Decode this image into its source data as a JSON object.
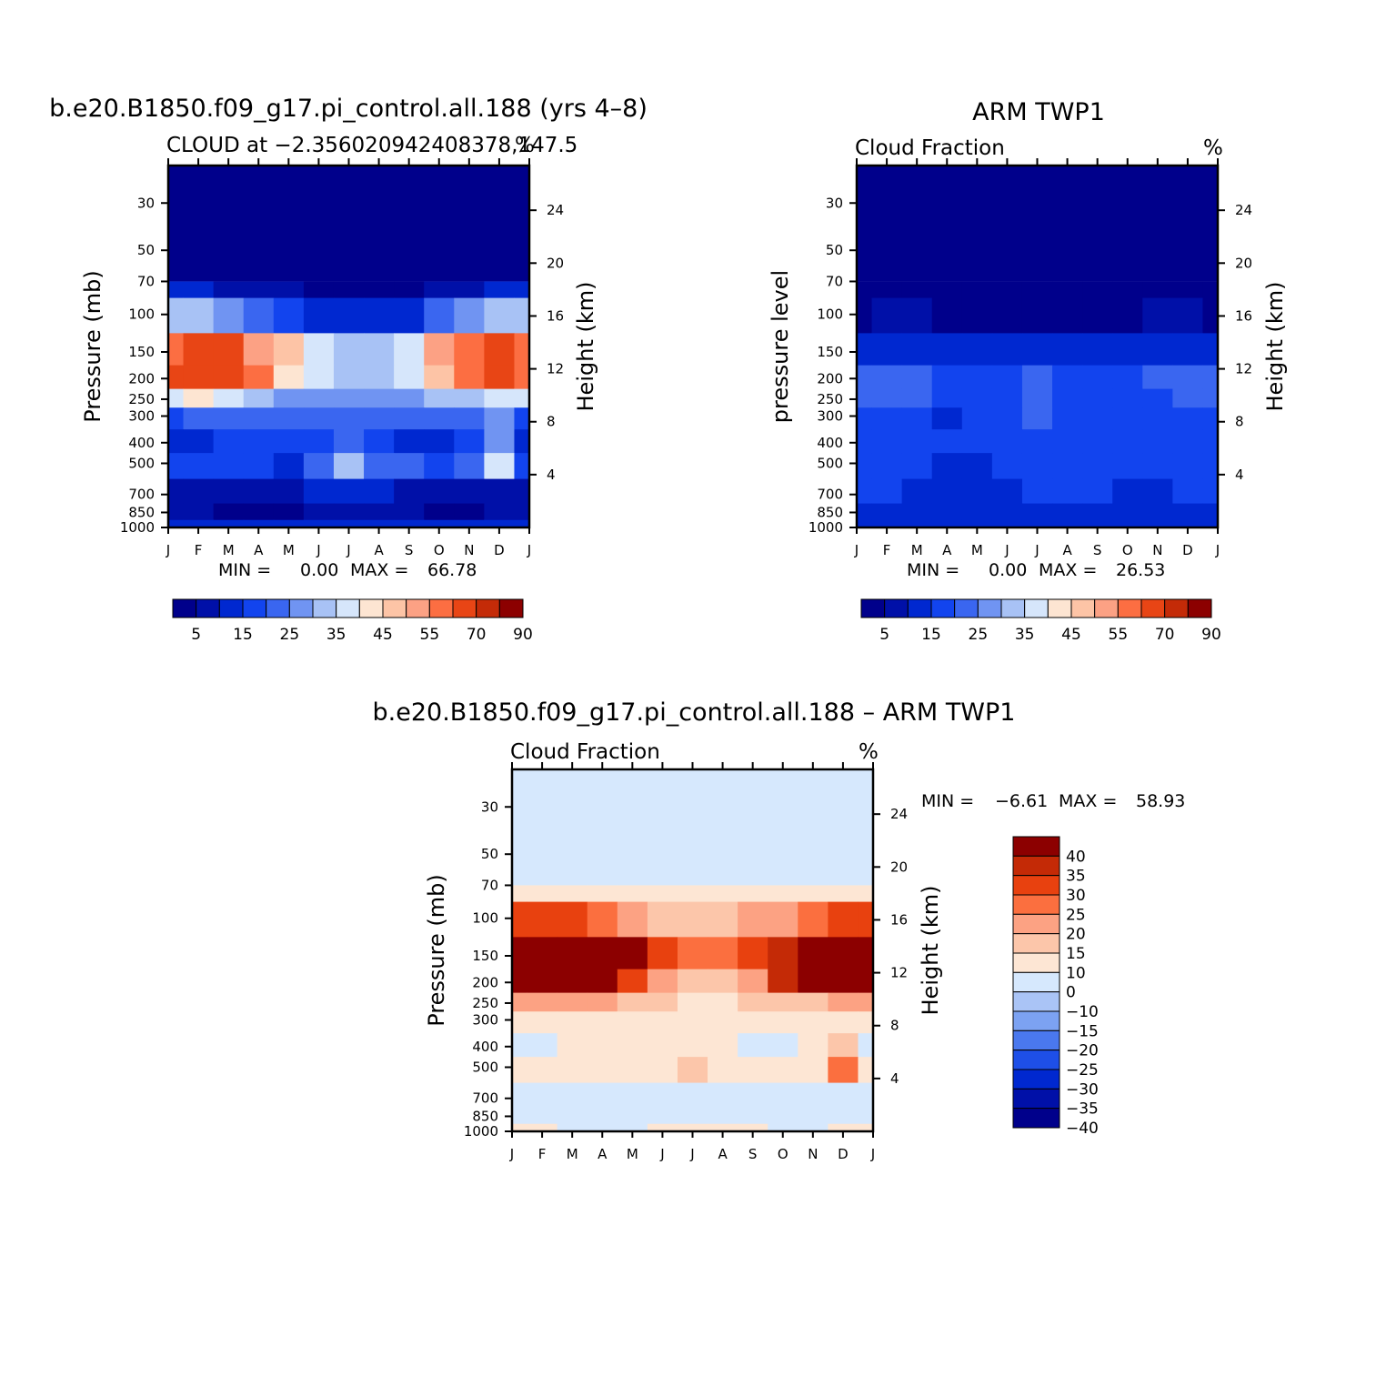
{
  "colors": {
    "scale15": [
      "#00008b",
      "#0010a8",
      "#0028d0",
      "#1244ee",
      "#3a66f0",
      "#7094f2",
      "#a8c2f5",
      "#d6e6fb",
      "#fde5d2",
      "#fdc4a6",
      "#fca184",
      "#fc6e42",
      "#e84515",
      "#c42b08",
      "#8c0000"
    ],
    "diffScale": [
      "#00008b",
      "#0010a8",
      "#0028d0",
      "#1e4fe8",
      "#4a78ee",
      "#7ca2f2",
      "#aac4f6",
      "#d6e8fd",
      "#fde6d4",
      "#fcc6aa",
      "#fca283",
      "#fb6f3f",
      "#e8410f",
      "#c42a06",
      "#8c0000"
    ]
  },
  "chart_data": [
    {
      "id": "model",
      "type": "heatmap",
      "title": "b.e20.B1850.f09_g17.pi_control.all.188 (yrs 4–8)",
      "subtitle": "CLOUD at −2.356020942408378,147.5",
      "units": "%",
      "xlabel": "",
      "ylabel": "Pressure (mb)",
      "ylabel_right": "Height (km)",
      "x_ticks": [
        "J",
        "F",
        "M",
        "A",
        "M",
        "J",
        "J",
        "A",
        "S",
        "O",
        "N",
        "D",
        "J"
      ],
      "y_ticks": [
        "30",
        "50",
        "70",
        "100",
        "150",
        "200",
        "250",
        "300",
        "400",
        "500",
        "700",
        "850",
        "1000"
      ],
      "y_ticks_right": [
        "24",
        "20",
        "16",
        "12",
        "8",
        "4"
      ],
      "ylim": [
        1000,
        20
      ],
      "stats": {
        "min_label": "MIN =",
        "min": "0.00",
        "max_label": "MAX =",
        "max": "66.78"
      },
      "colorbar_labels": [
        "5",
        "15",
        "25",
        "35",
        "45",
        "55",
        "70",
        "90"
      ],
      "levels": [
        "70",
        "100",
        "150",
        "200",
        "250",
        "300",
        "400",
        "500",
        "700",
        "850",
        "1000"
      ],
      "months": [
        "J",
        "F",
        "M",
        "A",
        "M",
        "J",
        "J",
        "A",
        "S",
        "O",
        "N",
        "D",
        "J"
      ],
      "values": [
        [
          12,
          10,
          8,
          7,
          5,
          4,
          3,
          3,
          4,
          5,
          7,
          10,
          12
        ],
        [
          30,
          30,
          28,
          24,
          18,
          14,
          12,
          12,
          14,
          20,
          26,
          30,
          30
        ],
        [
          58,
          62,
          60,
          54,
          46,
          38,
          34,
          34,
          38,
          50,
          58,
          62,
          58
        ],
        [
          60,
          64,
          63,
          56,
          44,
          36,
          33,
          33,
          36,
          48,
          58,
          62,
          58
        ],
        [
          36,
          40,
          38,
          32,
          28,
          26,
          26,
          26,
          28,
          30,
          32,
          36,
          36
        ],
        [
          18,
          20,
          22,
          20,
          22,
          24,
          22,
          22,
          24,
          22,
          22,
          26,
          18
        ],
        [
          14,
          14,
          16,
          18,
          16,
          18,
          20,
          18,
          12,
          14,
          16,
          28,
          14
        ],
        [
          16,
          16,
          18,
          16,
          14,
          22,
          30,
          22,
          20,
          18,
          20,
          36,
          16
        ],
        [
          8,
          8,
          6,
          6,
          6,
          10,
          10,
          10,
          8,
          6,
          6,
          8,
          8
        ],
        [
          6,
          6,
          4,
          4,
          4,
          6,
          6,
          6,
          6,
          4,
          4,
          6,
          6
        ],
        [
          12,
          12,
          10,
          10,
          10,
          12,
          12,
          12,
          12,
          10,
          10,
          12,
          12
        ]
      ]
    },
    {
      "id": "obs",
      "type": "heatmap",
      "title": "ARM TWP1",
      "subtitle": "Cloud Fraction",
      "units": "%",
      "xlabel": "",
      "ylabel": "pressure level",
      "ylabel_right": "Height (km)",
      "x_ticks": [
        "J",
        "F",
        "M",
        "A",
        "M",
        "J",
        "J",
        "A",
        "S",
        "O",
        "N",
        "D",
        "J"
      ],
      "y_ticks": [
        "30",
        "50",
        "70",
        "100",
        "150",
        "200",
        "250",
        "300",
        "400",
        "500",
        "700",
        "850",
        "1000"
      ],
      "y_ticks_right": [
        "24",
        "20",
        "16",
        "12",
        "8",
        "4"
      ],
      "ylim": [
        1000,
        20
      ],
      "stats": {
        "min_label": "MIN =",
        "min": "0.00",
        "max_label": "MAX =",
        "max": "26.53"
      },
      "colorbar_labels": [
        "5",
        "15",
        "25",
        "35",
        "45",
        "55",
        "70",
        "90"
      ],
      "levels": [
        "70",
        "100",
        "150",
        "200",
        "250",
        "300",
        "400",
        "500",
        "700",
        "850",
        "1000"
      ],
      "months": [
        "J",
        "F",
        "M",
        "A",
        "M",
        "J",
        "J",
        "A",
        "S",
        "O",
        "N",
        "D",
        "J"
      ],
      "values": [
        [
          1,
          1,
          1,
          1,
          1,
          1,
          1,
          1,
          1,
          1,
          1,
          1,
          1
        ],
        [
          4,
          6,
          5,
          4,
          3,
          3,
          3,
          3,
          3,
          4,
          5,
          6,
          4
        ],
        [
          11,
          12,
          12,
          11,
          10,
          10,
          10,
          10,
          10,
          10,
          11,
          12,
          11
        ],
        [
          21,
          22,
          21,
          17,
          16,
          17,
          22,
          19,
          17,
          16,
          20,
          23,
          21
        ],
        [
          21,
          22,
          21,
          17,
          16,
          16,
          24,
          19,
          17,
          16,
          19,
          21,
          21
        ],
        [
          17,
          17,
          16,
          14,
          16,
          16,
          20,
          18,
          17,
          16,
          17,
          17,
          17
        ],
        [
          16,
          16,
          16,
          15,
          16,
          16,
          18,
          17,
          17,
          16,
          16,
          16,
          16
        ],
        [
          16,
          16,
          15,
          12,
          14,
          16,
          17,
          16,
          16,
          15,
          15,
          16,
          16
        ],
        [
          15,
          15,
          12,
          11,
          12,
          14,
          15,
          15,
          15,
          12,
          12,
          15,
          15
        ],
        [
          14,
          14,
          12,
          11,
          12,
          14,
          14,
          14,
          14,
          12,
          12,
          14,
          14
        ],
        [
          12,
          12,
          12,
          11,
          12,
          12,
          12,
          12,
          12,
          12,
          12,
          12,
          12
        ]
      ]
    },
    {
      "id": "diff",
      "type": "heatmap",
      "title": "b.e20.B1850.f09_g17.pi_control.all.188 – ARM TWP1",
      "subtitle": "Cloud Fraction",
      "units": "%",
      "xlabel": "",
      "ylabel": "Pressure (mb)",
      "ylabel_right": "Height (km)",
      "x_ticks": [
        "J",
        "F",
        "M",
        "A",
        "M",
        "J",
        "J",
        "A",
        "S",
        "O",
        "N",
        "D",
        "J"
      ],
      "y_ticks": [
        "30",
        "50",
        "70",
        "100",
        "150",
        "200",
        "250",
        "300",
        "400",
        "500",
        "700",
        "850",
        "1000"
      ],
      "y_ticks_right": [
        "24",
        "20",
        "16",
        "12",
        "8",
        "4"
      ],
      "ylim": [
        1000,
        20
      ],
      "stats": {
        "min_label": "MIN =",
        "min": "−6.61",
        "max_label": "MAX =",
        "max": "58.93"
      },
      "colorbar_labels": [
        "40",
        "35",
        "30",
        "25",
        "20",
        "15",
        "10",
        "0",
        "−10",
        "−15",
        "−20",
        "−25",
        "−30",
        "−35",
        "−40"
      ],
      "levels": [
        "70",
        "100",
        "150",
        "200",
        "250",
        "300",
        "400",
        "500",
        "700",
        "850",
        "1000"
      ],
      "months": [
        "J",
        "F",
        "M",
        "A",
        "M",
        "J",
        "J",
        "A",
        "S",
        "O",
        "N",
        "D",
        "J"
      ],
      "values": [
        [
          6,
          6,
          6,
          5,
          4,
          3,
          3,
          3,
          3,
          4,
          5,
          6,
          6
        ],
        [
          26,
          28,
          26,
          20,
          16,
          14,
          14,
          14,
          16,
          18,
          22,
          26,
          26
        ],
        [
          47,
          50,
          48,
          43,
          36,
          28,
          24,
          24,
          28,
          34,
          39,
          50,
          47
        ],
        [
          39,
          42,
          42,
          39,
          28,
          19,
          11,
          14,
          19,
          32,
          39,
          41,
          37
        ],
        [
          15,
          18,
          17,
          15,
          12,
          10,
          2,
          7,
          11,
          14,
          13,
          15,
          15
        ],
        [
          1,
          3,
          6,
          5,
          6,
          8,
          2,
          4,
          7,
          6,
          5,
          9,
          1
        ],
        [
          -2,
          -2,
          1,
          3,
          0,
          2,
          2,
          1,
          -5,
          -2,
          0,
          12,
          -2
        ],
        [
          0,
          0,
          3,
          4,
          0,
          6,
          13,
          6,
          4,
          3,
          5,
          20,
          0
        ],
        [
          -7,
          -7,
          -6,
          -5,
          -6,
          -4,
          -5,
          -5,
          -7,
          -6,
          -6,
          -7,
          -7
        ],
        [
          -6,
          -6,
          -8,
          -7,
          -8,
          -8,
          -8,
          -8,
          -8,
          -8,
          -8,
          -8,
          -6
        ],
        [
          0,
          0,
          -2,
          -1,
          -2,
          0,
          0,
          0,
          0,
          -2,
          -2,
          0,
          0
        ]
      ]
    }
  ]
}
